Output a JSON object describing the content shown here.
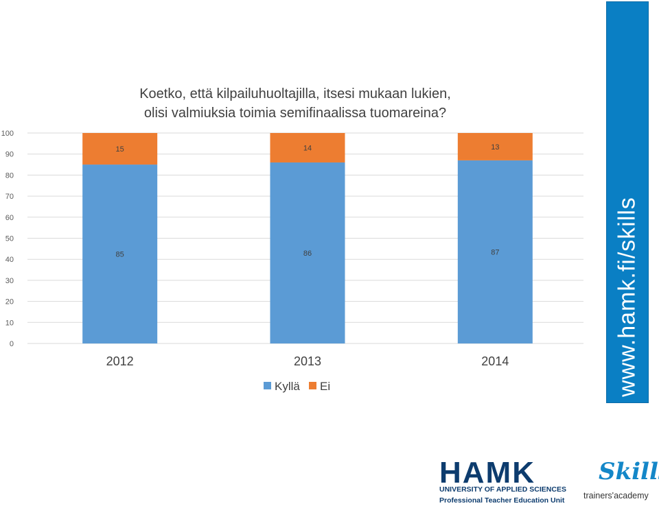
{
  "chart_data": {
    "type": "bar",
    "stacked": true,
    "title_lines": [
      "Koetko, että kilpailuhuoltajilla, itsesi mukaan lukien,",
      "olisi valmiuksia toimia semifinaalissa tuomareina?"
    ],
    "categories": [
      "2012",
      "2013",
      "2014"
    ],
    "series": [
      {
        "name": "Kyllä",
        "values": [
          85,
          86,
          87
        ],
        "color": "#5b9bd5"
      },
      {
        "name": "Ei",
        "values": [
          15,
          14,
          13
        ],
        "color": "#ed7d31"
      }
    ],
    "ylim": [
      0,
      100
    ],
    "yticks": [
      "0",
      "10",
      "20",
      "30",
      "40",
      "50",
      "60",
      "70",
      "80",
      "90",
      "100"
    ],
    "grid": true,
    "legend_position": "bottom"
  },
  "sidebar": {
    "url": "www.hamk.fi/skills",
    "color": "#0a7fc4"
  },
  "logos": {
    "hamk_word": "HAMK",
    "hamk_sub1": "UNIVERSITY OF APPLIED SCIENCES",
    "hamk_sub2": "Professional Teacher Education Unit",
    "skills_word": "Skills",
    "skills_sub": "trainers'academy"
  }
}
